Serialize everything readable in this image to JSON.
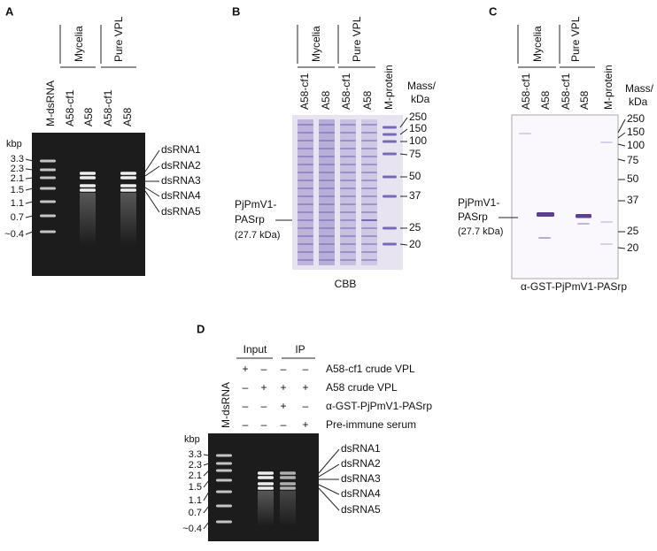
{
  "panel_a": {
    "label": "A",
    "lanes": [
      "M-dsRNA",
      "A58-cf1",
      "A58",
      "A58-cf1",
      "A58"
    ],
    "groups": [
      "Mycelia",
      "Pure VPL"
    ],
    "size_unit": "kbp",
    "ladder": [
      "3.3",
      "2.3",
      "2.1",
      "1.5",
      "1.1",
      "0.7",
      "~0.4"
    ],
    "bands": [
      "dsRNA1",
      "dsRNA2",
      "dsRNA3",
      "dsRNA4",
      "dsRNA5"
    ]
  },
  "panel_b": {
    "label": "B",
    "lanes": [
      "A58-cf1",
      "A58",
      "A58-cf1",
      "A58",
      "M-protein"
    ],
    "groups": [
      "Mycelia",
      "Pure VPL"
    ],
    "mass_unit": [
      "Mass/",
      "kDa"
    ],
    "markers": [
      "250",
      "150",
      "100",
      "75",
      "50",
      "37",
      "25",
      "20"
    ],
    "protein_label": [
      "PjPmV1-",
      "PASrp",
      "(27.7 kDa)"
    ],
    "caption": "CBB"
  },
  "panel_c": {
    "label": "C",
    "lanes": [
      "A58-cf1",
      "A58",
      "A58-cf1",
      "A58",
      "M-protein"
    ],
    "groups": [
      "Mycelia",
      "Pure VPL"
    ],
    "mass_unit": [
      "Mass/",
      "kDa"
    ],
    "markers": [
      "250",
      "150",
      "100",
      "75",
      "50",
      "37",
      "25",
      "20"
    ],
    "protein_label": [
      "PjPmV1-",
      "PASrp",
      "(27.7 kDa)"
    ],
    "caption": "α-GST-PjPmV1-PASrp"
  },
  "panel_d": {
    "label": "D",
    "headers": [
      "Input",
      "IP"
    ],
    "lane": "M-dsRNA",
    "signs": [
      [
        "+",
        "–",
        "–",
        "–"
      ],
      [
        "–",
        "+",
        "+",
        "+"
      ],
      [
        "–",
        "–",
        "+",
        "–"
      ],
      [
        "–",
        "–",
        "–",
        "+"
      ]
    ],
    "conditions": [
      "A58-cf1 crude VPL",
      "A58 crude VPL",
      "α-GST-PjPmV1-PASrp",
      "Pre-immune serum"
    ],
    "size_unit": "kbp",
    "ladder": [
      "3.3",
      "2.3",
      "2.1",
      "1.5",
      "1.1",
      "0.7",
      "~0.4"
    ],
    "bands": [
      "dsRNA1",
      "dsRNA2",
      "dsRNA3",
      "dsRNA4",
      "dsRNA5"
    ]
  }
}
